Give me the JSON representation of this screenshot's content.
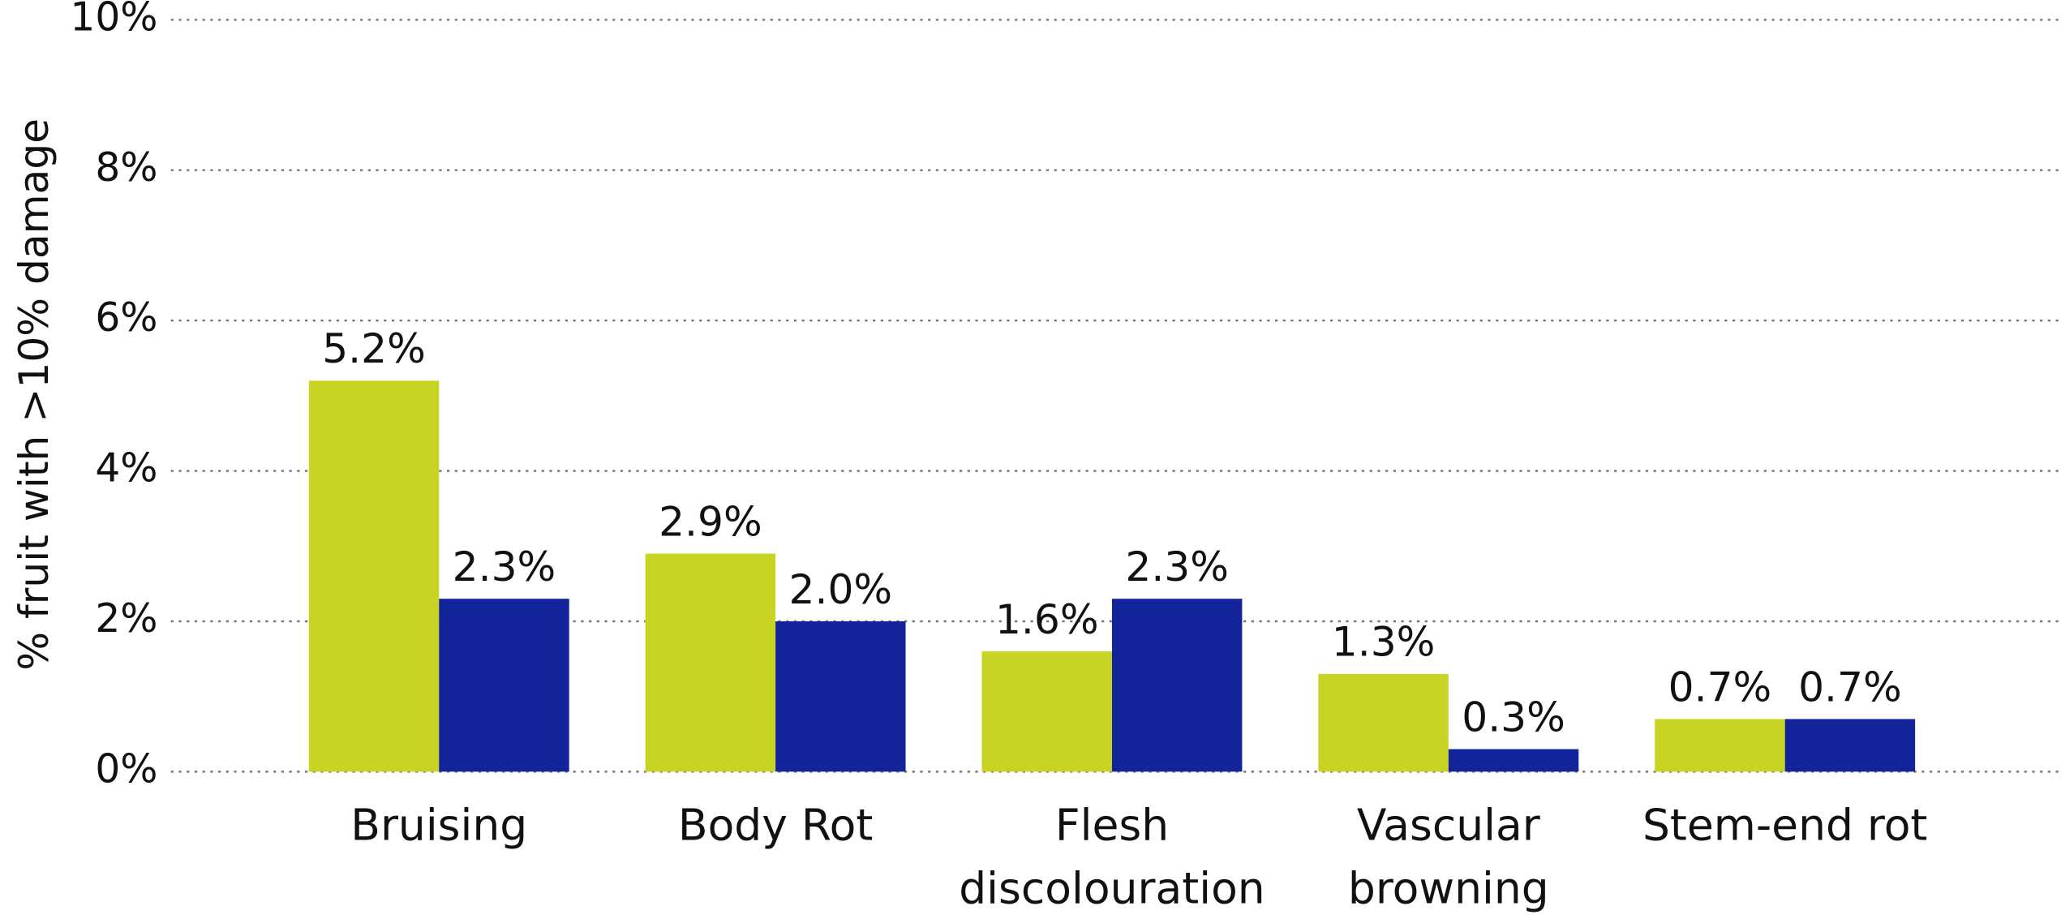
{
  "chart_data": {
    "type": "bar",
    "y_label": "% fruit with >10% damage",
    "categories": [
      "Bruising",
      "Body Rot",
      "Flesh discolouration",
      "Vascular browning",
      "Stem-end rot"
    ],
    "series": [
      {
        "color": "#c8d424",
        "values": [
          5.2,
          2.9,
          1.6,
          1.3,
          0.7
        ],
        "value_labels": [
          "5.2%",
          "2.9%",
          "1.6%",
          "1.3%",
          "0.7%"
        ]
      },
      {
        "color": "#13239a",
        "values": [
          2.3,
          2.0,
          2.3,
          0.3,
          0.7
        ],
        "value_labels": [
          "2.3%",
          "2.0%",
          "2.3%",
          "0.3%",
          "0.7%"
        ]
      }
    ],
    "ylim": [
      0,
      10
    ],
    "yticks": [
      {
        "value": 0,
        "label": "0%"
      },
      {
        "value": 2,
        "label": "2%"
      },
      {
        "value": 4,
        "label": "4%"
      },
      {
        "value": 6,
        "label": "6%"
      },
      {
        "value": 8,
        "label": "8%"
      },
      {
        "value": 10,
        "label": "10%"
      }
    ],
    "grid": true
  }
}
